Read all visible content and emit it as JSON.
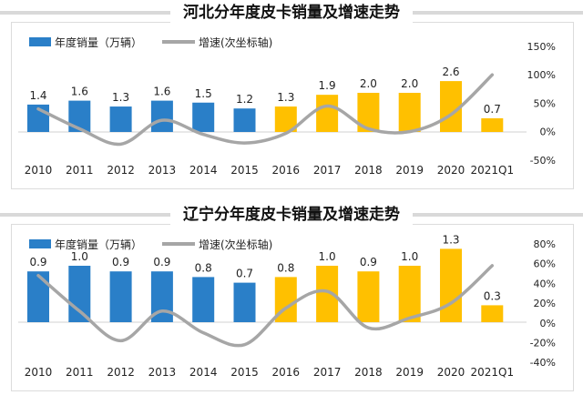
{
  "colors": {
    "bar_blue": "#2a7fc8",
    "bar_yellow": "#ffc000",
    "line_gray": "#a6a6a6",
    "text": "#222222"
  },
  "chart_data": [
    {
      "type": "bar",
      "title": "河北分年度皮卡销量及增速走势",
      "categories": [
        "2010",
        "2011",
        "2012",
        "2013",
        "2014",
        "2015",
        "2016",
        "2017",
        "2018",
        "2019",
        "2020",
        "2021Q1"
      ],
      "series": [
        {
          "name": "年度销量（万辆）",
          "type": "bar",
          "values": [
            1.4,
            1.6,
            1.3,
            1.6,
            1.5,
            1.2,
            1.3,
            1.9,
            2.0,
            2.0,
            2.6,
            0.7
          ],
          "colors": [
            "blue",
            "blue",
            "blue",
            "blue",
            "blue",
            "blue",
            "yellow",
            "yellow",
            "yellow",
            "yellow",
            "yellow",
            "yellow"
          ]
        },
        {
          "name": "增速(次坐标轴)",
          "type": "line",
          "axis": "secondary",
          "values": [
            40,
            5,
            -22,
            20,
            -5,
            -20,
            -3,
            45,
            5,
            0,
            30,
            100
          ]
        }
      ],
      "y2_ticks": [
        "150%",
        "100%",
        "50%",
        "0%",
        "-50%"
      ],
      "y2lim": [
        -50,
        150
      ],
      "ylim": [
        0,
        3.0
      ]
    },
    {
      "type": "bar",
      "title": "辽宁分年度皮卡销量及增速走势",
      "categories": [
        "2010",
        "2011",
        "2012",
        "2013",
        "2014",
        "2015",
        "2016",
        "2017",
        "2018",
        "2019",
        "2020",
        "2021Q1"
      ],
      "series": [
        {
          "name": "年度销量（万辆）",
          "type": "bar",
          "values": [
            0.9,
            1.0,
            0.9,
            0.9,
            0.8,
            0.7,
            0.8,
            1.0,
            0.9,
            1.0,
            1.3,
            0.3
          ],
          "colors": [
            "blue",
            "blue",
            "blue",
            "blue",
            "blue",
            "blue",
            "yellow",
            "yellow",
            "yellow",
            "yellow",
            "yellow",
            "yellow"
          ]
        },
        {
          "name": "增速(次坐标轴)",
          "type": "line",
          "axis": "secondary",
          "values": [
            48,
            12,
            -18,
            12,
            -10,
            -22,
            15,
            32,
            -5,
            5,
            20,
            58
          ]
        }
      ],
      "y2_ticks": [
        "80%",
        "60%",
        "40%",
        "20%",
        "0%",
        "-20%",
        "-40%"
      ],
      "y2lim": [
        -40,
        80
      ],
      "ylim": [
        0,
        1.8
      ]
    }
  ]
}
